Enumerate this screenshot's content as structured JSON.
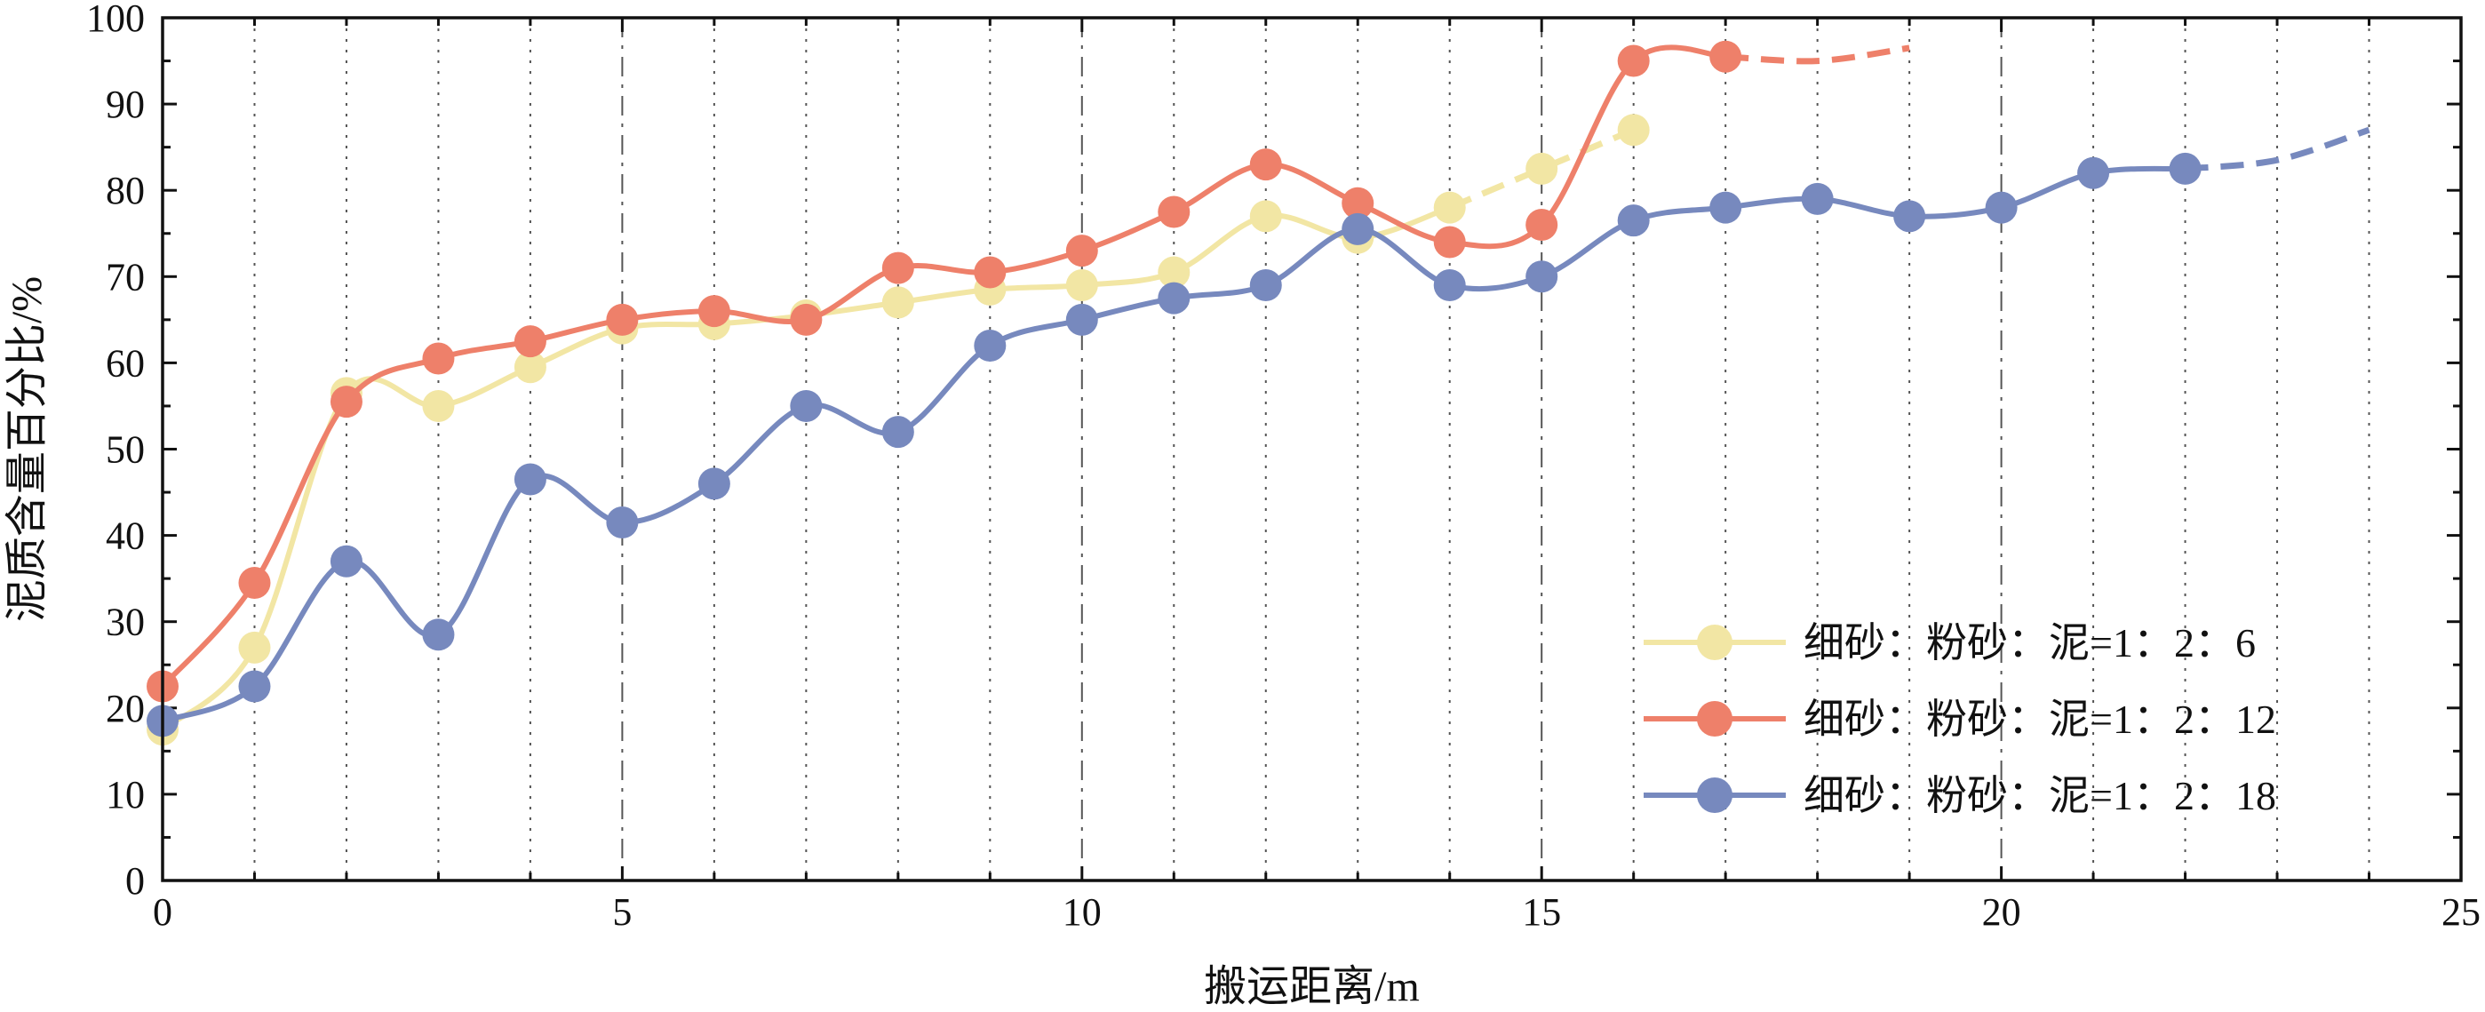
{
  "chart_data": {
    "type": "line",
    "xlabel": "搬运距离/m",
    "ylabel": "泥质含量百分比/%",
    "xlim": [
      0,
      25
    ],
    "ylim": [
      0,
      100
    ],
    "x_ticks": [
      "0",
      "5",
      "10",
      "15",
      "20",
      "25"
    ],
    "y_ticks": [
      "0",
      "10",
      "20",
      "30",
      "40",
      "50",
      "60",
      "70",
      "80",
      "90",
      "100"
    ],
    "grid": {
      "vertical": true,
      "horizontal": false,
      "dashdot_at_x": [
        5,
        10,
        15,
        20
      ],
      "dotted_at_x": [
        1,
        2,
        3,
        4,
        6,
        7,
        8,
        9,
        11,
        12,
        13,
        14,
        16,
        17,
        18,
        19,
        21,
        22,
        23,
        24
      ]
    },
    "legend_position": "bottom-right",
    "series": [
      {
        "name": "细砂：粉砂：泥=1：2：6",
        "color": "#f2e6a4",
        "x": [
          0,
          1,
          2,
          3,
          4,
          5,
          6,
          7,
          8,
          9,
          10,
          11,
          12,
          13,
          14,
          15,
          16
        ],
        "y": [
          17.5,
          27,
          56.5,
          55,
          59.5,
          64,
          64.5,
          65.5,
          67,
          68.5,
          69,
          70.5,
          77,
          74.5,
          78,
          82.5,
          87
        ],
        "extrapolated": {
          "x": [
            14,
            15,
            16
          ],
          "y": [
            78,
            82.5,
            87
          ]
        }
      },
      {
        "name": "细砂：粉砂：泥=1：2：12",
        "color": "#ee806a",
        "x": [
          0,
          1,
          2,
          3,
          4,
          5,
          6,
          7,
          8,
          9,
          10,
          11,
          12,
          13,
          14,
          15,
          16,
          17
        ],
        "y": [
          22.5,
          34.5,
          55.5,
          60.5,
          62.5,
          65,
          66,
          65,
          71,
          70.5,
          73,
          77.5,
          83,
          78.5,
          74,
          76,
          95,
          95.5
        ],
        "extrapolated": {
          "x": [
            17,
            18,
            19
          ],
          "y": [
            95.5,
            95,
            96.5
          ]
        }
      },
      {
        "name": "细砂：粉砂：泥=1：2：18",
        "color": "#7789be",
        "x": [
          0,
          1,
          2,
          3,
          4,
          5,
          6,
          7,
          8,
          9,
          10,
          11,
          12,
          13,
          14,
          15,
          16,
          17,
          18,
          19,
          20,
          21,
          22
        ],
        "y": [
          18.5,
          22.5,
          37,
          28.5,
          46.5,
          41.5,
          46,
          55,
          52,
          62,
          65,
          67.5,
          69,
          75.5,
          69,
          70,
          76.5,
          78,
          79,
          77,
          78,
          82,
          82.5
        ],
        "extrapolated": {
          "x": [
            22,
            23,
            24
          ],
          "y": [
            82.5,
            83.5,
            87
          ]
        }
      }
    ]
  }
}
